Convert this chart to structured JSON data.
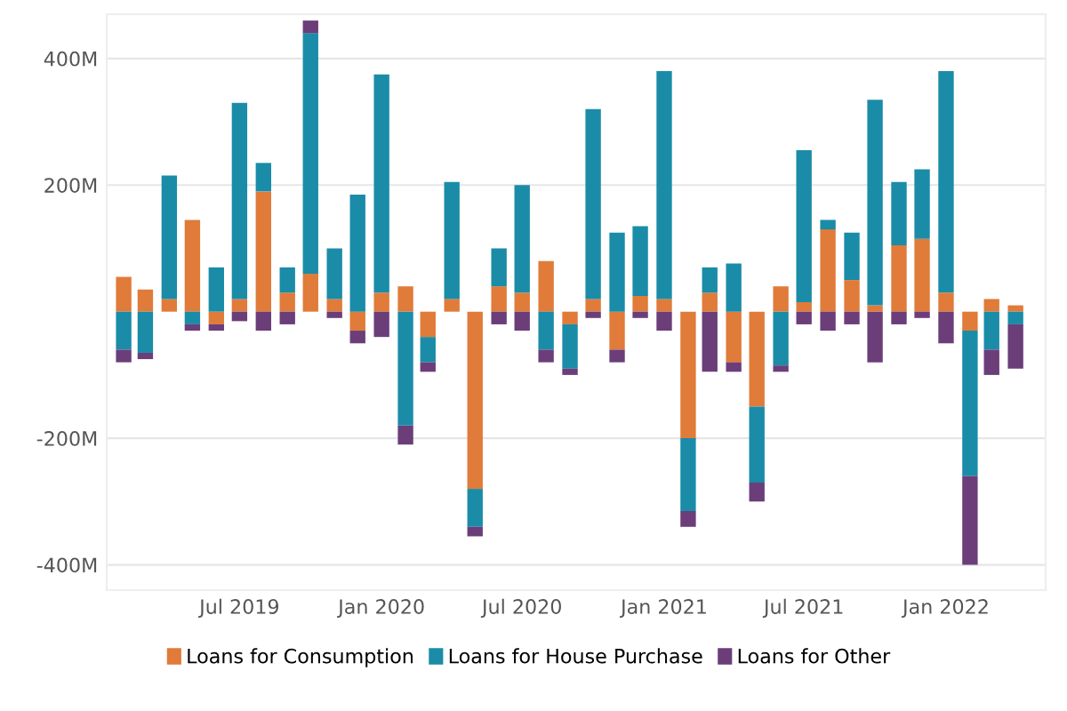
{
  "chart_data": {
    "type": "bar",
    "stacked": true,
    "x": [
      "2019-02",
      "2019-03",
      "2019-04",
      "2019-05",
      "2019-06",
      "2019-07",
      "2019-08",
      "2019-09",
      "2019-10",
      "2019-11",
      "2019-12",
      "2020-01",
      "2020-02",
      "2020-03",
      "2020-04",
      "2020-05",
      "2020-06",
      "2020-07",
      "2020-08",
      "2020-09",
      "2020-10",
      "2020-11",
      "2020-12",
      "2021-01",
      "2021-02",
      "2021-03",
      "2021-04",
      "2021-05",
      "2021-06",
      "2021-07",
      "2021-08",
      "2021-09",
      "2021-10",
      "2021-11",
      "2021-12",
      "2022-01",
      "2022-02",
      "2022-03",
      "2022-04"
    ],
    "series": [
      {
        "name": "Loans for Consumption",
        "color": "#e07b39",
        "values": [
          55,
          35,
          20,
          145,
          -20,
          20,
          190,
          30,
          60,
          20,
          -30,
          30,
          40,
          -40,
          20,
          -280,
          40,
          30,
          80,
          -20,
          20,
          -60,
          25,
          20,
          -200,
          30,
          -80,
          -150,
          40,
          15,
          130,
          50,
          10,
          105,
          115,
          30,
          -30,
          20,
          10
        ]
      },
      {
        "name": "Loans for House Purchase",
        "color": "#1a8ca8",
        "values": [
          -60,
          -65,
          195,
          -20,
          70,
          310,
          45,
          40,
          380,
          80,
          185,
          345,
          -180,
          -40,
          185,
          -60,
          60,
          170,
          -60,
          -70,
          300,
          125,
          110,
          360,
          -115,
          40,
          76,
          -120,
          -85,
          240,
          15,
          75,
          325,
          100,
          110,
          350,
          -230,
          -60,
          -20
        ]
      },
      {
        "name": "Loans for Other",
        "color": "#6b3e7a",
        "values": [
          -20,
          -10,
          0,
          -10,
          -10,
          -15,
          -30,
          -20,
          20,
          -10,
          -20,
          -40,
          -30,
          -15,
          0,
          -15,
          -20,
          -30,
          -20,
          -10,
          -10,
          -20,
          -10,
          -30,
          -25,
          -95,
          -15,
          -30,
          -10,
          -20,
          -30,
          -20,
          -80,
          -20,
          -10,
          -50,
          -140,
          -40,
          -70
        ]
      }
    ],
    "xlim": [
      "2019-01-10",
      "2022-05-10"
    ],
    "xticks": [
      {
        "value": "2019-07",
        "label": "Jul 2019"
      },
      {
        "value": "2020-01",
        "label": "Jan 2020"
      },
      {
        "value": "2020-07",
        "label": "Jul 2020"
      },
      {
        "value": "2021-01",
        "label": "Jan 2021"
      },
      {
        "value": "2021-07",
        "label": "Jul 2021"
      },
      {
        "value": "2022-01",
        "label": "Jan 2022"
      }
    ],
    "ylim": [
      -440,
      470
    ],
    "yticks": [
      {
        "value": -400,
        "label": "-400M"
      },
      {
        "value": -200,
        "label": "-200M"
      },
      {
        "value": 200,
        "label": "200M"
      },
      {
        "value": 400,
        "label": "400M"
      }
    ],
    "grid": "y",
    "legend": "bottom"
  }
}
